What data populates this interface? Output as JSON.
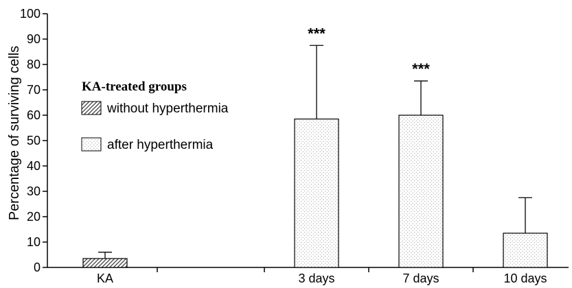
{
  "chart_data": {
    "type": "bar",
    "ylabel": "Percentage of surviving cells",
    "ylim": [
      0,
      100
    ],
    "yticks": [
      0,
      10,
      20,
      30,
      40,
      50,
      60,
      70,
      80,
      90,
      100
    ],
    "categories": [
      "KA",
      "3 days",
      "7 days",
      "10 days"
    ],
    "values": [
      3.5,
      58.5,
      60,
      13.5
    ],
    "errors": [
      2.5,
      29,
      13.5,
      14
    ],
    "patterns": [
      "hatch",
      "dots",
      "dots",
      "dots"
    ],
    "significance": [
      "",
      "***",
      "***",
      ""
    ],
    "legend": {
      "title": "KA-treated groups",
      "entries": [
        {
          "label": "without hyperthermia",
          "pattern": "hatch"
        },
        {
          "label": "after hyperthermia",
          "pattern": "dots"
        }
      ],
      "placement": "upper-left"
    },
    "grid": false
  }
}
